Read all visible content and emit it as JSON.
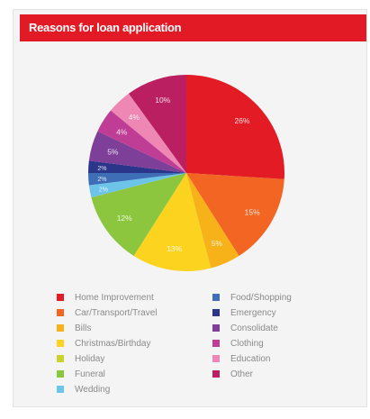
{
  "chart_data": {
    "type": "pie",
    "title": "Reasons for loan application",
    "slices": [
      {
        "name": "Home Improvement",
        "value": 26,
        "label": "26%",
        "color": "#e31b25"
      },
      {
        "name": "Car/Transport/Travel",
        "value": 15,
        "label": "15%",
        "color": "#f26522"
      },
      {
        "name": "Bills",
        "value": 5,
        "label": "5%",
        "color": "#f7b219"
      },
      {
        "name": "Christmas/Birthday",
        "value": 13,
        "label": "13%",
        "color": "#fcd41f"
      },
      {
        "name": "Holiday",
        "value": 0,
        "label": "",
        "color": "#c8d42b"
      },
      {
        "name": "Funeral",
        "value": 12,
        "label": "12%",
        "color": "#8cc63e"
      },
      {
        "name": "Wedding",
        "value": 2,
        "label": "2%",
        "color": "#6cc5e9"
      },
      {
        "name": "Food/Shopping",
        "value": 2,
        "label": "2%",
        "color": "#3e6fb6"
      },
      {
        "name": "Emergency",
        "value": 2,
        "label": "2%",
        "color": "#2b3589"
      },
      {
        "name": "Consolidate",
        "value": 5,
        "label": "5%",
        "color": "#7d3f98"
      },
      {
        "name": "Clothing",
        "value": 4,
        "label": "4%",
        "color": "#c03d96"
      },
      {
        "name": "Education",
        "value": 4,
        "label": "4%",
        "color": "#ee87b4"
      },
      {
        "name": "Other",
        "value": 10,
        "label": "10%",
        "color": "#ba1f61"
      }
    ],
    "legend_placement": "bottom",
    "start_direction": "top, clockwise"
  }
}
